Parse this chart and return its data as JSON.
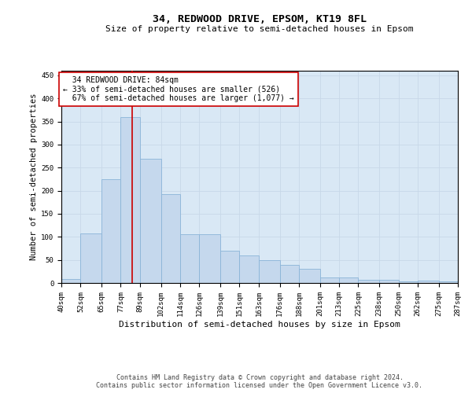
{
  "title": "34, REDWOOD DRIVE, EPSOM, KT19 8FL",
  "subtitle": "Size of property relative to semi-detached houses in Epsom",
  "xlabel": "Distribution of semi-detached houses by size in Epsom",
  "ylabel": "Number of semi-detached properties",
  "footer_line1": "Contains HM Land Registry data © Crown copyright and database right 2024.",
  "footer_line2": "Contains public sector information licensed under the Open Government Licence v3.0.",
  "property_label": "34 REDWOOD DRIVE: 84sqm",
  "smaller_pct": "33%",
  "smaller_count": "526",
  "larger_pct": "67%",
  "larger_count": "1,077",
  "bin_edges": [
    40,
    52,
    65,
    77,
    89,
    102,
    114,
    126,
    139,
    151,
    163,
    176,
    188,
    201,
    213,
    225,
    238,
    250,
    262,
    275,
    287
  ],
  "bar_heights": [
    8,
    107,
    225,
    360,
    270,
    192,
    105,
    105,
    70,
    60,
    50,
    40,
    30,
    12,
    12,
    6,
    6,
    3,
    5,
    3
  ],
  "property_vline_x": 84,
  "bar_color": "#c5d8ed",
  "bar_edge_color": "#8ab4d8",
  "vline_color": "#cc0000",
  "grid_color": "#c8d8e8",
  "annotation_box_edge_color": "#cc0000",
  "annotation_box_face_color": "#ffffff",
  "ylim": [
    0,
    460
  ],
  "yticks": [
    0,
    50,
    100,
    150,
    200,
    250,
    300,
    350,
    400,
    450
  ],
  "background_color": "#d9e8f5",
  "title_fontsize": 9.5,
  "subtitle_fontsize": 8,
  "tick_fontsize": 6.5,
  "ylabel_fontsize": 7.5,
  "xlabel_fontsize": 8,
  "annotation_fontsize": 7,
  "footer_fontsize": 6
}
